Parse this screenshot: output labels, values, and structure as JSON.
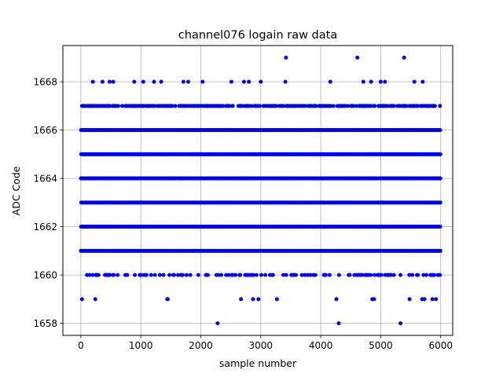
{
  "chart_data": {
    "type": "scatter",
    "title": "channel076 logain raw data",
    "xlabel": "sample number",
    "ylabel": "ADC Code",
    "xlim": [
      -300,
      6200
    ],
    "ylim": [
      1657.5,
      1669.5
    ],
    "xticks": [
      0,
      1000,
      2000,
      3000,
      4000,
      5000,
      6000
    ],
    "yticks": [
      1658,
      1660,
      1662,
      1664,
      1666,
      1668
    ],
    "grid": true,
    "marker": "circle",
    "color": "#0000ff",
    "sample_count": 6000,
    "series": [
      {
        "dense_levels": [
          1661,
          1662,
          1663,
          1664,
          1665,
          1666
        ],
        "frequent_levels": [
          1660,
          1667
        ],
        "sparse_points": [
          {
            "y": 1669,
            "x": [
              3420,
              4610,
              5390
            ]
          },
          {
            "y": 1668,
            "x": [
              200,
              360,
              480,
              540,
              890,
              1040,
              1220,
              1340,
              1710,
              1790,
              2030,
              2510,
              2720,
              2800,
              3000,
              3410,
              4160,
              4710,
              4840,
              5000,
              5070,
              5560,
              5700
            ]
          },
          {
            "y": 1659,
            "x": [
              20,
              240,
              1440,
              1450,
              2670,
              2870,
              2960,
              3270,
              4260,
              4860,
              4890,
              5480,
              5690,
              5730,
              5860,
              5920
            ]
          },
          {
            "y": 1658,
            "x": [
              2280,
              4300,
              5330
            ]
          }
        ]
      }
    ]
  }
}
